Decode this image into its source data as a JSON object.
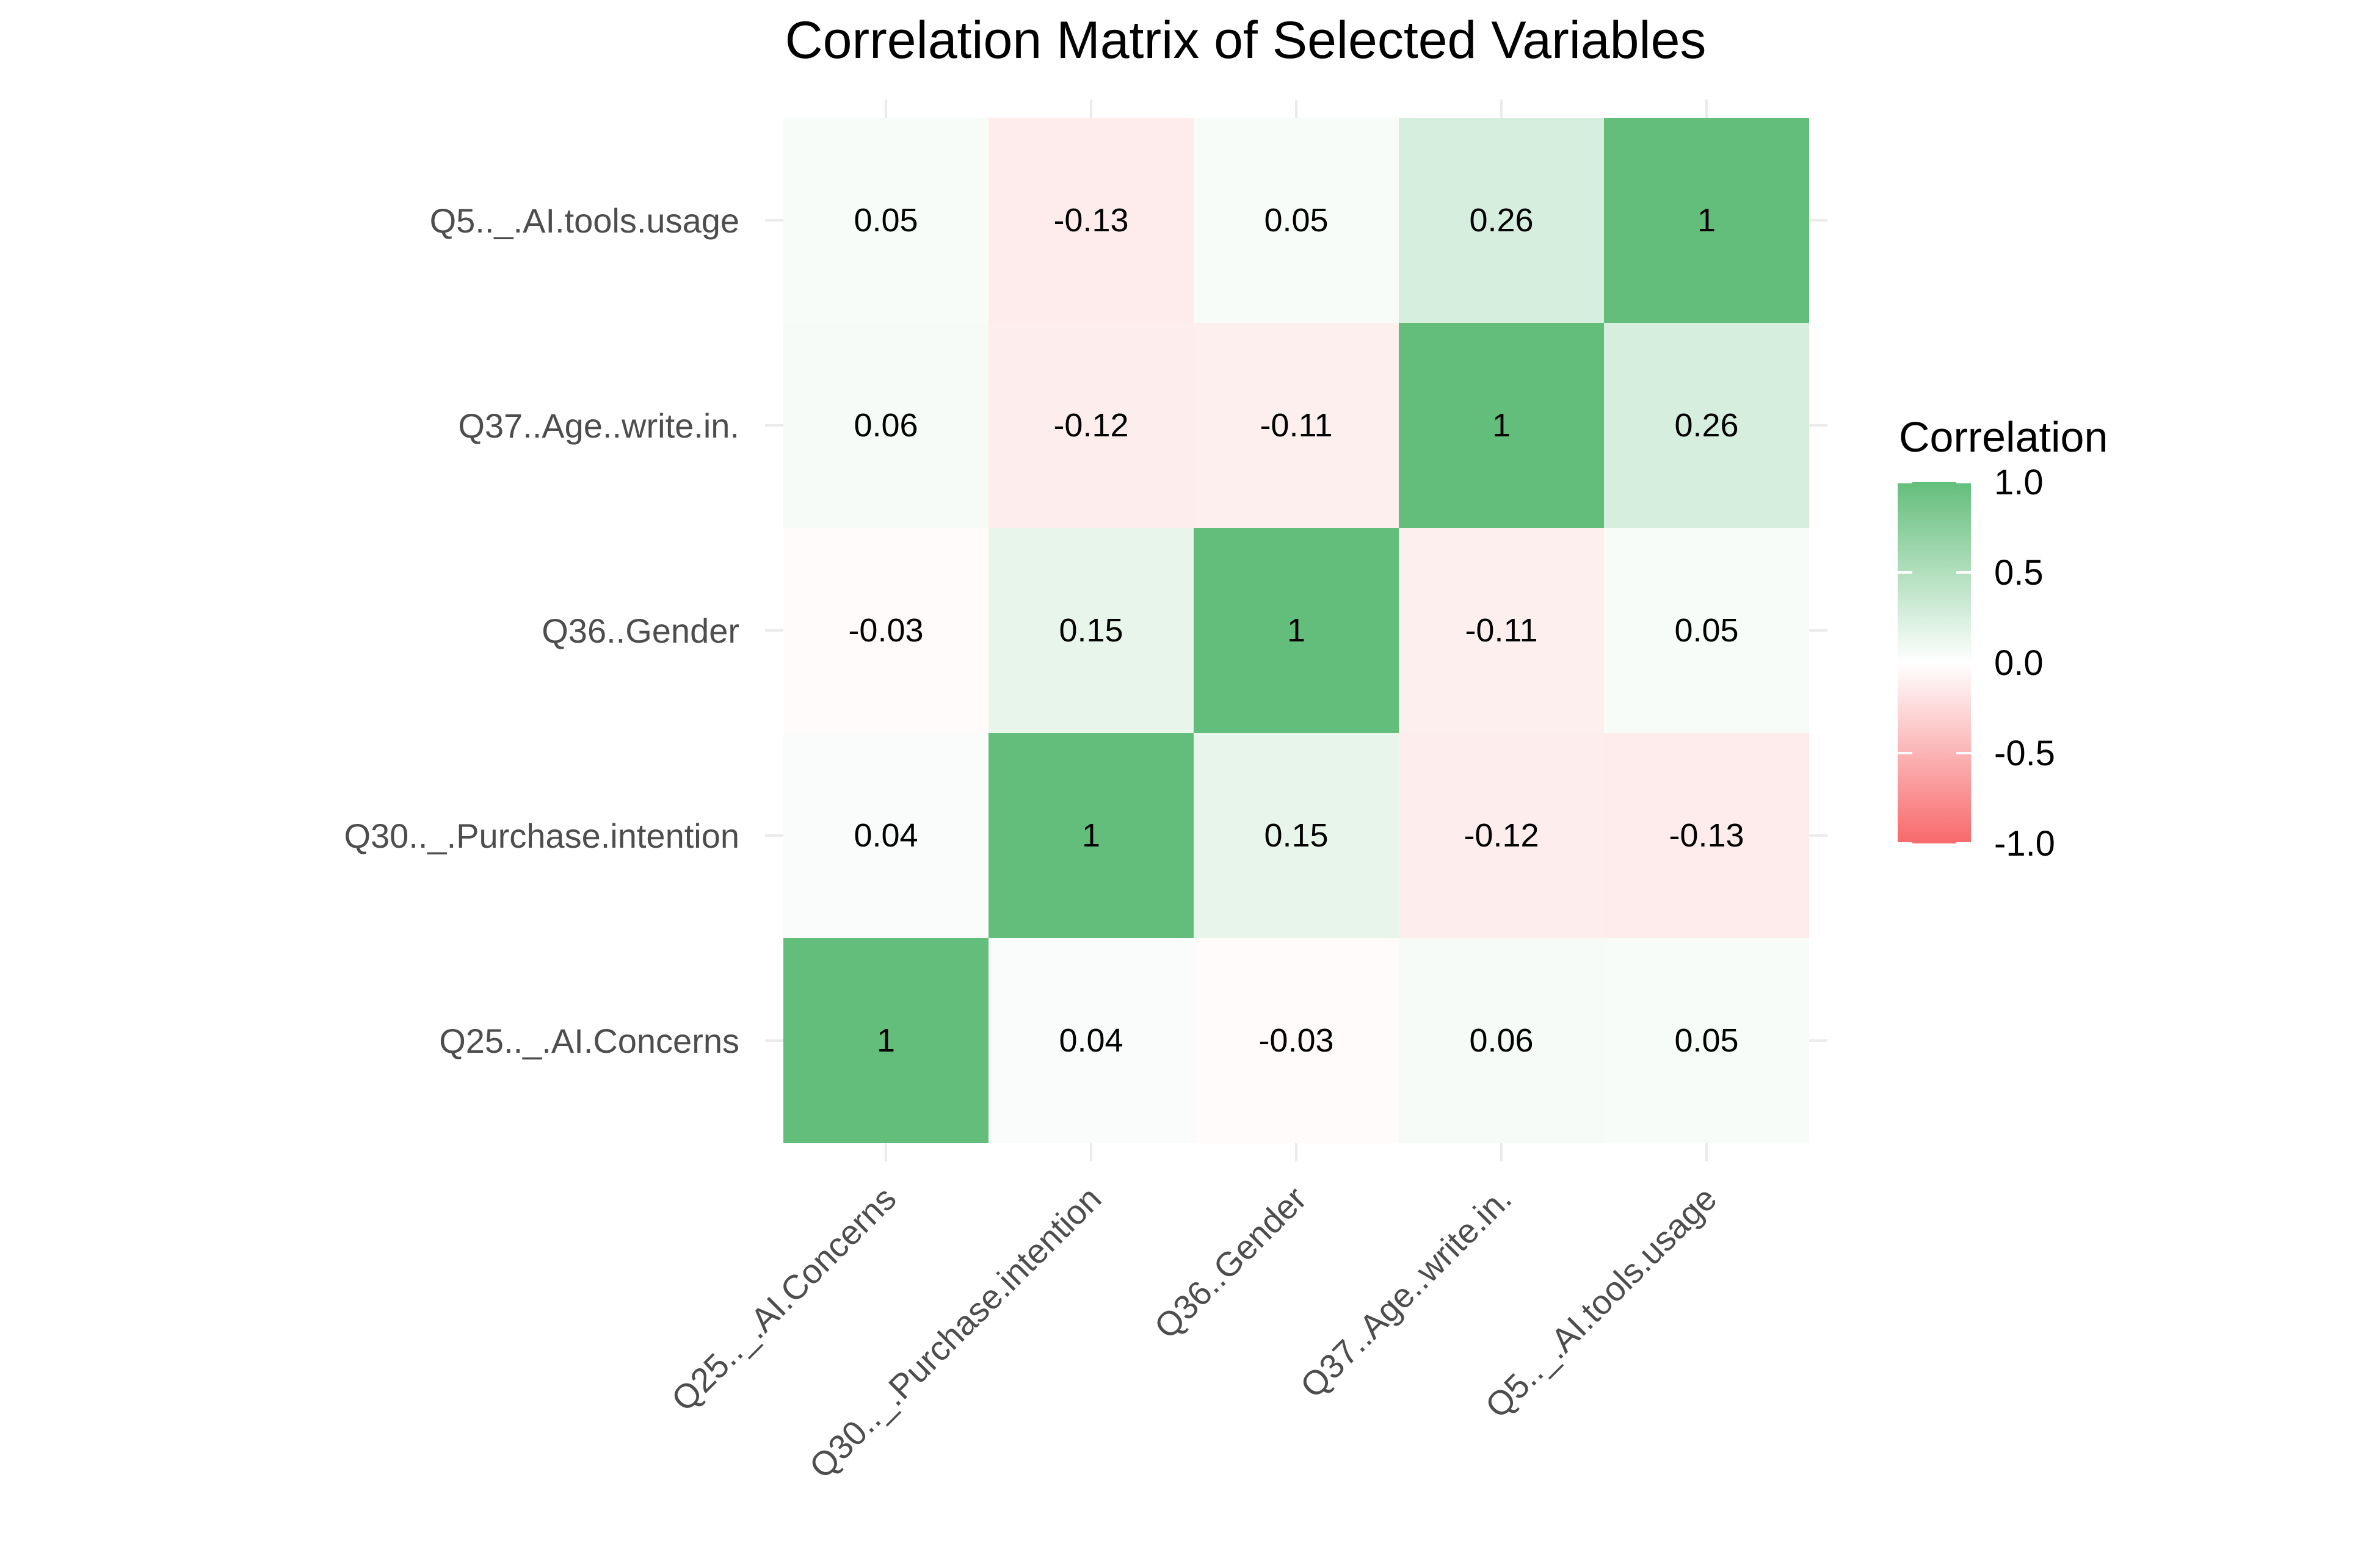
{
  "chart_data": {
    "type": "heatmap",
    "title": "Correlation Matrix of Selected Variables",
    "xlabel": "",
    "ylabel": "",
    "variables": [
      "Q25.._.AI.Concerns",
      "Q30.._.Purchase.intention",
      "Q36..Gender",
      "Q37..Age..write.in.",
      "Q5.._.AI.tools.usage"
    ],
    "matrix": [
      [
        1,
        0.04,
        -0.03,
        0.06,
        0.05
      ],
      [
        0.04,
        1,
        0.15,
        -0.12,
        -0.13
      ],
      [
        -0.03,
        0.15,
        1,
        -0.11,
        0.05
      ],
      [
        0.06,
        -0.12,
        -0.11,
        1,
        0.26
      ],
      [
        0.05,
        -0.13,
        0.05,
        0.26,
        1
      ]
    ],
    "cell_labels": [
      [
        "1",
        "0.04",
        "-0.03",
        "0.06",
        "0.05"
      ],
      [
        "0.04",
        "1",
        "0.15",
        "-0.12",
        "-0.13"
      ],
      [
        "-0.03",
        "0.15",
        "1",
        "-0.11",
        "0.05"
      ],
      [
        "0.06",
        "-0.12",
        "-0.11",
        "1",
        "0.26"
      ],
      [
        "0.05",
        "-0.13",
        "0.05",
        "0.26",
        "1"
      ]
    ],
    "legend": {
      "title": "Correlation",
      "ticks": [
        1.0,
        0.5,
        0.0,
        -0.5,
        -1.0
      ],
      "tick_labels": [
        "1.0",
        "0.5",
        "0.0",
        "-0.5",
        "-1.0"
      ],
      "range": [
        -1,
        1
      ],
      "placement": "right"
    },
    "colors": {
      "high": "#63BE7B",
      "mid": "#FFFFFF",
      "low": "#F8696B",
      "grid": "#EBEBEB",
      "axis_text": "#4D4D4D",
      "text": "#000000"
    },
    "grid": true
  }
}
